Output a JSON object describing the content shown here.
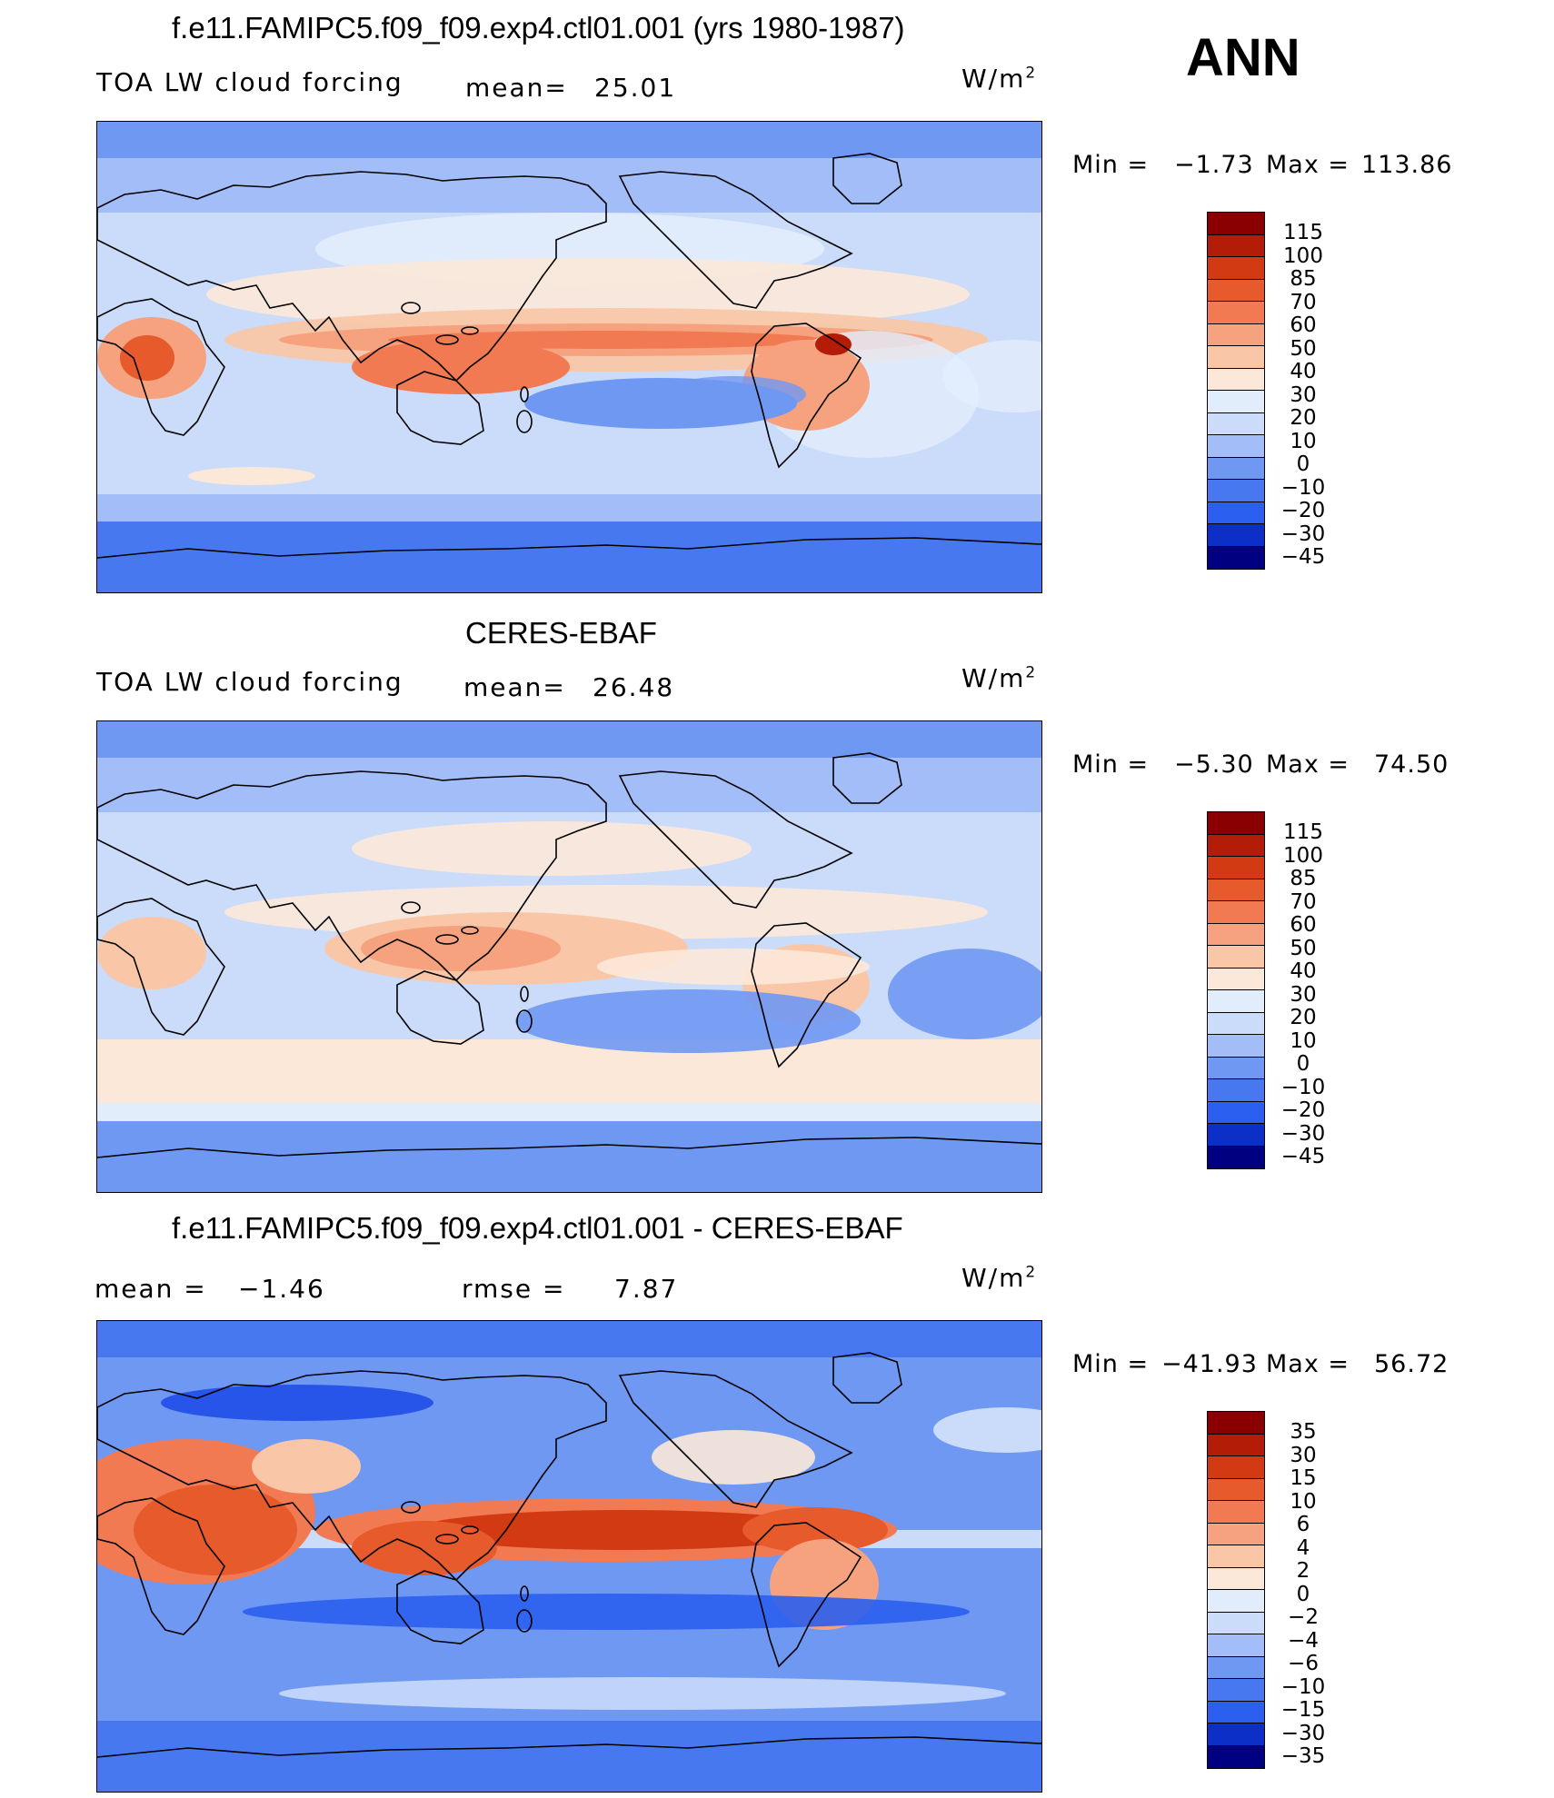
{
  "season": "ANN",
  "palette": [
    "#000080",
    "#0a1aa3",
    "#0c2fc7",
    "#1745e6",
    "#2a5ff0",
    "#4878f0",
    "#6f98f3",
    "#a2bdf7",
    "#cadcfa",
    "#e2edfc",
    "#fce8d8",
    "#f9c7a8",
    "#f6a27e",
    "#f27a52",
    "#e65a2c",
    "#d23a14",
    "#b31c06",
    "#8a0000"
  ],
  "panels": [
    {
      "id": "model",
      "title": "f.e11.FAMIPC5.f09_f09.exp4.ctl01.001 (yrs 1980-1987)",
      "left_label": "TOA LW cloud forcing",
      "mean_label": "mean=",
      "mean_value": "25.01",
      "units": "W/m",
      "units_sup": "2",
      "min_label": "Min  =",
      "min_value": "−1.73",
      "max_label": "Max  =",
      "max_value": "113.86",
      "colorbar_labels": [
        "115",
        "100",
        "85",
        "70",
        "60",
        "50",
        "40",
        "30",
        "20",
        "10",
        "0",
        "−10",
        "−20",
        "−30",
        "−45"
      ]
    },
    {
      "id": "obs",
      "title": "CERES-EBAF",
      "left_label": "TOA LW cloud forcing",
      "mean_label": "mean=",
      "mean_value": "26.48",
      "units": "W/m",
      "units_sup": "2",
      "min_label": "Min  =",
      "min_value": "−5.30",
      "max_label": "Max  =",
      "max_value": "74.50",
      "colorbar_labels": [
        "115",
        "100",
        "85",
        "70",
        "60",
        "50",
        "40",
        "30",
        "20",
        "10",
        "0",
        "−10",
        "−20",
        "−30",
        "−45"
      ]
    },
    {
      "id": "diff",
      "title": "f.e11.FAMIPC5.f09_f09.exp4.ctl01.001 - CERES-EBAF",
      "left_label": "mean  =",
      "mean_label": "",
      "mean_value": "−1.46",
      "rmse_label": "rmse  =",
      "rmse_value": "7.87",
      "units": "W/m",
      "units_sup": "2",
      "min_label": "Min  =",
      "min_value": "−41.93",
      "max_label": "Max  =",
      "max_value": "56.72",
      "colorbar_labels": [
        "35",
        "30",
        "15",
        "10",
        "6",
        "4",
        "2",
        "0",
        "−2",
        "−4",
        "−6",
        "−10",
        "−15",
        "−30",
        "−35"
      ]
    }
  ]
}
